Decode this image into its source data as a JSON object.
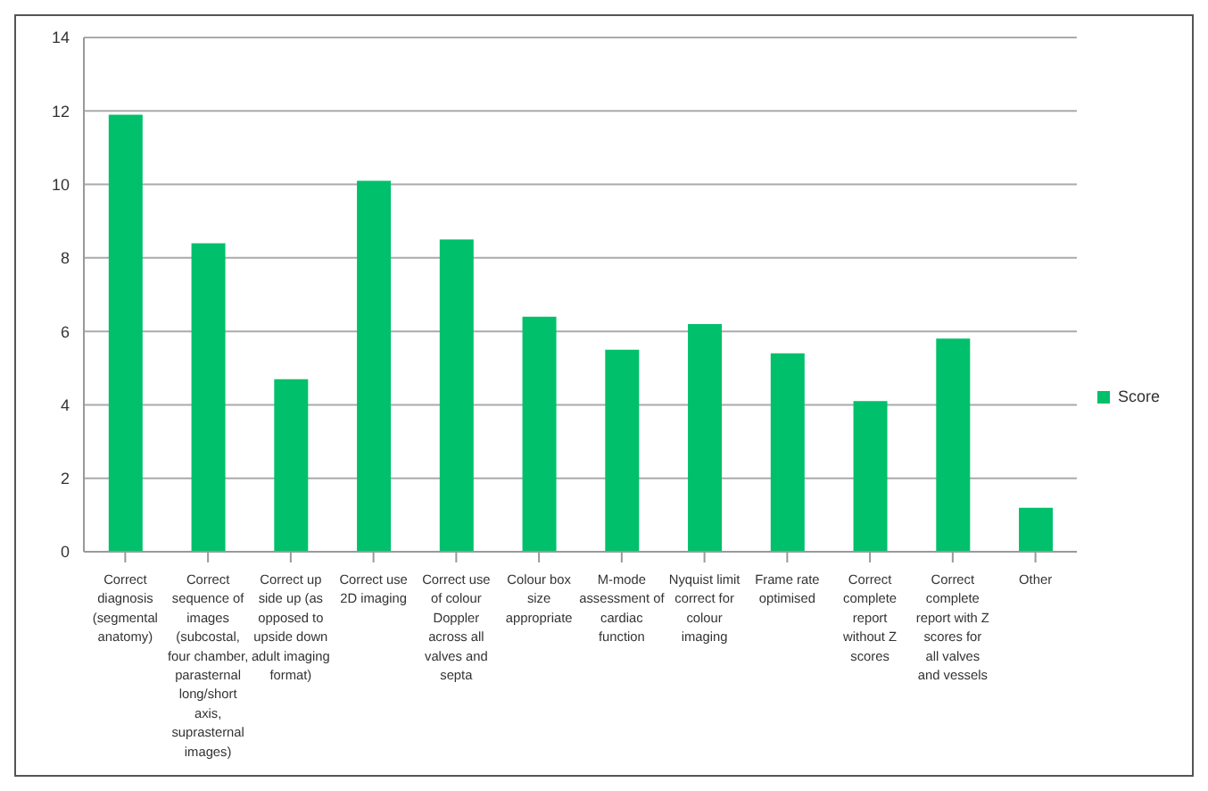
{
  "chart_data": {
    "type": "bar",
    "categories": [
      "Correct diagnosis (segmental anatomy)",
      "Correct sequence of images (subcostal, four chamber, parasternal long/short axis, suprasternal images)",
      "Correct up side up (as opposed to upside down adult imaging format)",
      "Correct use 2D imaging",
      "Correct use of colour Doppler across all valves and septa",
      "Colour box size appropriate",
      "M-mode assessment of cardiac function",
      "Nyquist limit correct for colour imaging",
      "Frame rate optimised",
      "Correct complete report without Z scores",
      "Correct complete report with Z scores for all valves and vessels",
      "Other"
    ],
    "series": [
      {
        "name": "Score",
        "color": "#00c06b",
        "values": [
          11.9,
          8.4,
          4.7,
          10.1,
          8.5,
          6.4,
          5.5,
          6.2,
          5.4,
          4.1,
          5.8,
          1.2
        ]
      }
    ],
    "ylim": [
      0,
      14
    ],
    "yticks": [
      0,
      2,
      4,
      6,
      8,
      10,
      12,
      14
    ],
    "grid": "y",
    "legend": "right"
  }
}
